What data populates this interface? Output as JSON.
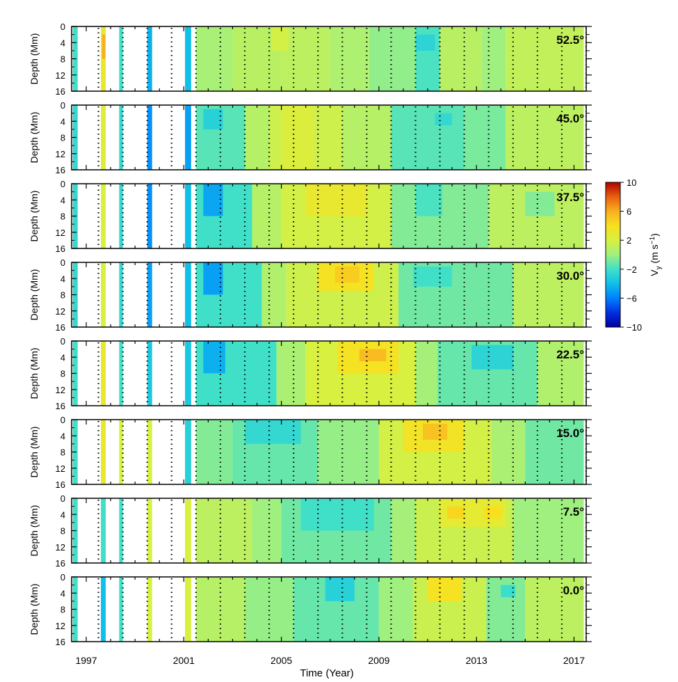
{
  "chart_data": {
    "type": "heatmap",
    "title": "",
    "xlabel": "Time (Year)",
    "ylabel": "Depth (Mm)",
    "x_ticks": [
      "1997",
      "2001",
      "2005",
      "2009",
      "2013",
      "2017"
    ],
    "x_range": [
      1996.4,
      2017.5
    ],
    "y_ticks": [
      "0",
      "4",
      "8",
      "12",
      "16"
    ],
    "y_range": [
      0,
      16
    ],
    "colorbar": {
      "label": "Vy (m s⁻¹)",
      "label_main": "V",
      "label_sub": "y",
      "label_unit": " (m s",
      "label_exp": "−1",
      "label_close": ")",
      "range": [
        -10,
        10
      ],
      "ticks": [
        "10",
        "6",
        "2",
        "−2",
        "−6",
        "−10"
      ],
      "tick_values": [
        10,
        6,
        2,
        -2,
        -6,
        -10
      ],
      "colors": [
        "#0000a0",
        "#0030e0",
        "#0080ff",
        "#10c0e8",
        "#40e0c8",
        "#a0f080",
        "#d8f040",
        "#f8e020",
        "#f8b020",
        "#e86010",
        "#b00000"
      ]
    },
    "data_gaps": [
      [
        1997.2,
        1997.55
      ],
      [
        1997.8,
        1998.3
      ],
      [
        1998.55,
        1999.5
      ],
      [
        1999.75,
        2000.6
      ],
      [
        2000.65,
        2001.0
      ]
    ],
    "panels": [
      {
        "latitude_label": "52.5°",
        "field": [
          [
            2001.5,
            2003.0,
            0,
            16,
            0.3
          ],
          [
            2003.0,
            2005.0,
            0,
            16,
            0.9
          ],
          [
            2005.0,
            2007.0,
            0,
            16,
            1.0
          ],
          [
            2007.0,
            2008.6,
            0,
            16,
            0.5
          ],
          [
            2008.6,
            2010.5,
            0,
            16,
            -0.3
          ],
          [
            2010.5,
            2011.5,
            0,
            16,
            -1.8
          ],
          [
            2011.5,
            2013.2,
            0,
            16,
            0.9
          ],
          [
            2013.2,
            2014.2,
            0,
            16,
            0.0
          ],
          [
            2014.2,
            2017.4,
            0,
            16,
            1.2
          ],
          [
            2004.6,
            2005.3,
            0,
            6,
            1.8
          ],
          [
            2010.5,
            2011.3,
            2,
            6,
            -2.8
          ],
          [
            1996.45,
            1996.65,
            0,
            16,
            -2.0
          ],
          [
            1997.6,
            1997.8,
            0,
            16,
            3.0
          ],
          [
            1997.65,
            1997.78,
            2,
            8,
            6.0
          ],
          [
            1998.35,
            1998.5,
            0,
            16,
            -2.0
          ],
          [
            1999.5,
            1999.7,
            0,
            16,
            -4.5
          ],
          [
            2001.05,
            2001.3,
            0,
            16,
            -4.0
          ]
        ]
      },
      {
        "latitude_label": "45.0°",
        "field": [
          [
            2001.5,
            2003.5,
            0,
            16,
            -1.5
          ],
          [
            2001.8,
            2002.6,
            1,
            6,
            -3.0
          ],
          [
            2003.5,
            2004.5,
            0,
            16,
            0.8
          ],
          [
            2004.5,
            2007.5,
            0,
            16,
            1.6
          ],
          [
            2007.5,
            2009.5,
            0,
            16,
            0.8
          ],
          [
            2009.5,
            2012.5,
            0,
            16,
            -1.5
          ],
          [
            2011.3,
            2012.0,
            2,
            5,
            -2.5
          ],
          [
            2012.5,
            2014.2,
            0,
            16,
            -0.8
          ],
          [
            2014.2,
            2017.4,
            0,
            16,
            1.0
          ],
          [
            2005.0,
            2006.3,
            0,
            16,
            2.2
          ],
          [
            1996.45,
            1996.65,
            0,
            16,
            -2.5
          ],
          [
            1997.6,
            1997.8,
            0,
            16,
            2.5
          ],
          [
            1998.35,
            1998.5,
            0,
            16,
            -2.5
          ],
          [
            1999.5,
            1999.7,
            0,
            16,
            -5.5
          ],
          [
            2001.05,
            2001.3,
            0,
            16,
            -5.0
          ]
        ]
      },
      {
        "latitude_label": "37.5°",
        "field": [
          [
            2001.5,
            2003.8,
            0,
            16,
            -2.0
          ],
          [
            2001.8,
            2002.6,
            0,
            8,
            -4.8
          ],
          [
            2003.8,
            2005.0,
            0,
            16,
            0.8
          ],
          [
            2005.0,
            2009.5,
            0,
            16,
            1.8
          ],
          [
            2006.0,
            2008.5,
            0,
            8,
            3.0
          ],
          [
            2009.5,
            2013.5,
            0,
            16,
            -0.6
          ],
          [
            2010.5,
            2011.6,
            0,
            8,
            -1.8
          ],
          [
            2013.5,
            2017.4,
            0,
            16,
            1.0
          ],
          [
            2015.0,
            2016.2,
            2,
            8,
            -0.6
          ],
          [
            1996.45,
            1996.65,
            0,
            16,
            -2.5
          ],
          [
            1997.6,
            1997.8,
            0,
            16,
            2.0
          ],
          [
            1998.35,
            1998.5,
            0,
            16,
            -2.5
          ],
          [
            1999.5,
            1999.7,
            0,
            16,
            -5.5
          ],
          [
            2001.05,
            2001.3,
            0,
            16,
            -4.0
          ]
        ]
      },
      {
        "latitude_label": "30.0°",
        "field": [
          [
            2001.5,
            2004.2,
            0,
            16,
            -2.0
          ],
          [
            2001.8,
            2002.6,
            0,
            8,
            -5.0
          ],
          [
            2004.2,
            2005.2,
            0,
            16,
            0.6
          ],
          [
            2005.2,
            2009.8,
            0,
            16,
            1.6
          ],
          [
            2006.5,
            2008.8,
            0,
            7,
            3.8
          ],
          [
            2007.2,
            2008.2,
            1,
            5,
            4.8
          ],
          [
            2009.8,
            2014.5,
            0,
            16,
            -1.0
          ],
          [
            2010.4,
            2012.0,
            1,
            6,
            -2.0
          ],
          [
            2014.5,
            2017.4,
            0,
            16,
            1.0
          ],
          [
            1996.45,
            1996.65,
            0,
            16,
            -2.5
          ],
          [
            1997.6,
            1997.8,
            0,
            16,
            2.0
          ],
          [
            1998.35,
            1998.5,
            0,
            16,
            -2.5
          ],
          [
            1999.5,
            1999.7,
            0,
            16,
            -5.0
          ],
          [
            2001.05,
            2001.3,
            0,
            16,
            -4.0
          ]
        ]
      },
      {
        "latitude_label": "22.5°",
        "field": [
          [
            2001.5,
            2004.8,
            0,
            16,
            -2.0
          ],
          [
            2001.8,
            2002.7,
            0,
            8,
            -4.5
          ],
          [
            2004.8,
            2006.0,
            0,
            16,
            0.4
          ],
          [
            2006.0,
            2010.5,
            0,
            16,
            2.0
          ],
          [
            2007.3,
            2009.8,
            0,
            8,
            3.8
          ],
          [
            2008.2,
            2009.3,
            2,
            5,
            5.5
          ],
          [
            2010.5,
            2011.4,
            0,
            16,
            0.2
          ],
          [
            2011.4,
            2015.5,
            0,
            16,
            -1.2
          ],
          [
            2012.8,
            2014.5,
            1,
            7,
            -2.8
          ],
          [
            2015.5,
            2017.4,
            0,
            16,
            0.6
          ],
          [
            1996.45,
            1996.65,
            0,
            16,
            -2.0
          ],
          [
            1997.6,
            1997.8,
            0,
            16,
            3.0
          ],
          [
            1998.35,
            1998.5,
            0,
            16,
            -2.0
          ],
          [
            1999.5,
            1999.7,
            0,
            16,
            -3.5
          ],
          [
            2001.05,
            2001.3,
            0,
            16,
            -3.5
          ]
        ]
      },
      {
        "latitude_label": "15.0°",
        "field": [
          [
            2001.5,
            2003.0,
            0,
            16,
            -0.6
          ],
          [
            2003.0,
            2006.5,
            0,
            16,
            -1.2
          ],
          [
            2003.5,
            2005.8,
            0,
            6,
            -2.5
          ],
          [
            2006.5,
            2009.0,
            0,
            16,
            -0.2
          ],
          [
            2009.0,
            2013.6,
            0,
            16,
            1.8
          ],
          [
            2010.0,
            2012.5,
            0,
            8,
            3.6
          ],
          [
            2010.8,
            2011.8,
            1,
            5,
            5.2
          ],
          [
            2013.6,
            2015.0,
            0,
            16,
            0.4
          ],
          [
            2015.0,
            2017.4,
            0,
            16,
            -1.0
          ],
          [
            1996.45,
            1996.65,
            0,
            16,
            -2.0
          ],
          [
            1997.6,
            1997.8,
            0,
            16,
            3.0
          ],
          [
            1998.35,
            1998.5,
            0,
            16,
            2.0
          ],
          [
            1999.5,
            1999.7,
            0,
            16,
            2.0
          ],
          [
            2001.05,
            2001.3,
            0,
            16,
            -3.0
          ]
        ]
      },
      {
        "latitude_label": "7.5°",
        "field": [
          [
            2001.5,
            2003.8,
            0,
            16,
            1.0
          ],
          [
            2003.8,
            2005.0,
            0,
            16,
            0.0
          ],
          [
            2005.0,
            2009.5,
            0,
            16,
            -1.0
          ],
          [
            2005.8,
            2008.8,
            0,
            8,
            -2.0
          ],
          [
            2009.5,
            2010.5,
            0,
            16,
            0.2
          ],
          [
            2010.5,
            2014.5,
            0,
            16,
            1.5
          ],
          [
            2011.5,
            2014.2,
            0,
            7,
            2.8
          ],
          [
            2011.8,
            2012.5,
            2,
            5,
            4.4
          ],
          [
            2013.3,
            2014.0,
            2,
            5,
            4.0
          ],
          [
            2014.5,
            2017.4,
            0,
            16,
            0.0
          ],
          [
            1996.45,
            1996.65,
            0,
            16,
            -2.0
          ],
          [
            1997.6,
            1997.8,
            0,
            16,
            -2.0
          ],
          [
            1998.35,
            1998.5,
            0,
            16,
            -2.0
          ],
          [
            1999.5,
            1999.7,
            0,
            16,
            2.0
          ],
          [
            2001.05,
            2001.3,
            0,
            16,
            2.0
          ]
        ]
      },
      {
        "latitude_label": "0.0°",
        "field": [
          [
            2001.5,
            2003.5,
            0,
            16,
            0.8
          ],
          [
            2003.5,
            2005.5,
            0,
            16,
            -0.2
          ],
          [
            2005.5,
            2009.0,
            0,
            16,
            -1.2
          ],
          [
            2006.8,
            2008.0,
            0,
            6,
            -3.0
          ],
          [
            2009.0,
            2010.4,
            0,
            16,
            0.0
          ],
          [
            2010.4,
            2013.4,
            0,
            16,
            1.5
          ],
          [
            2011.0,
            2012.4,
            0,
            6,
            3.8
          ],
          [
            2013.4,
            2015.0,
            0,
            16,
            -0.6
          ],
          [
            2014.0,
            2014.6,
            2,
            5,
            -2.2
          ],
          [
            2015.0,
            2017.4,
            0,
            16,
            1.0
          ],
          [
            1996.45,
            1996.65,
            0,
            16,
            -2.0
          ],
          [
            1997.6,
            1997.8,
            0,
            16,
            -4.0
          ],
          [
            1998.35,
            1998.5,
            0,
            16,
            -2.0
          ],
          [
            1999.5,
            1999.7,
            0,
            16,
            2.0
          ],
          [
            2001.05,
            2001.3,
            0,
            16,
            2.0
          ]
        ]
      }
    ]
  }
}
